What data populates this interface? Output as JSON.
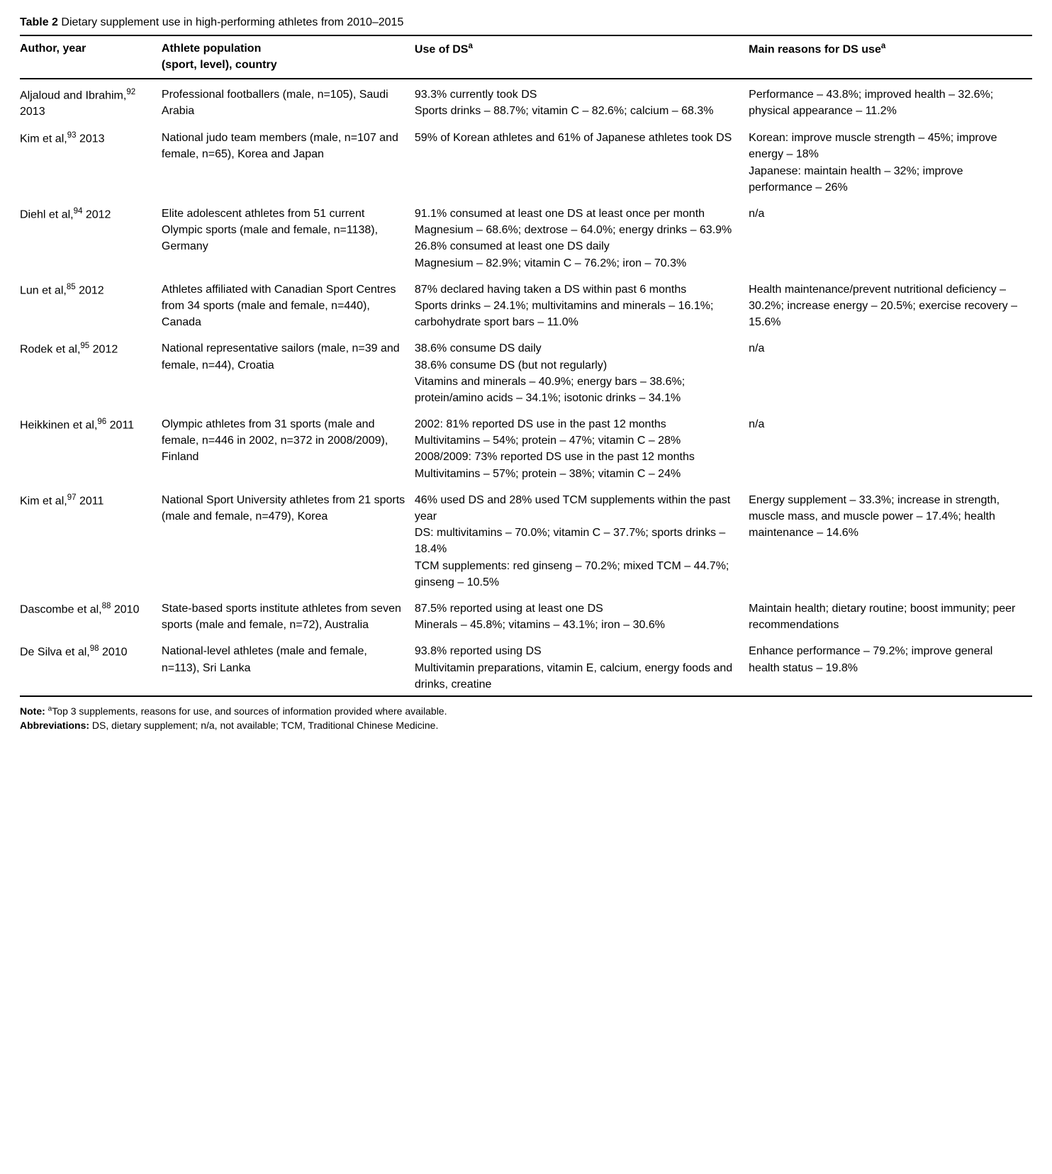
{
  "title_lead": "Table 2",
  "title_rest": " Dietary supplement use in high-performing athletes from 2010–2015",
  "columns": {
    "c1": "Author, year",
    "c2_line1": "Athlete population",
    "c2_line2": "(sport, level), country",
    "c3_pre": "Use of DS",
    "c3_sup": "a",
    "c4_pre": "Main reasons for DS use",
    "c4_sup": "a"
  },
  "rows": [
    {
      "author_pre": "Aljaloud and Ibrahim,",
      "author_sup": "92",
      "author_post": " 2013",
      "population": "Professional footballers (male, n=105), Saudi Arabia",
      "use": "93.3% currently took DS\nSports drinks – 88.7%; vitamin C – 82.6%; calcium – 68.3%",
      "reasons": "Performance – 43.8%; improved health – 32.6%; physical appearance – 11.2%"
    },
    {
      "author_pre": "Kim et al,",
      "author_sup": "93",
      "author_post": " 2013",
      "population": "National judo team members (male, n=107 and female, n=65), Korea and Japan",
      "use": "59% of Korean athletes and 61% of Japanese athletes took DS",
      "reasons": "Korean: improve muscle strength – 45%; improve energy – 18%\nJapanese: maintain health – 32%; improve performance – 26%"
    },
    {
      "author_pre": "Diehl et al,",
      "author_sup": "94",
      "author_post": " 2012",
      "population": "Elite adolescent athletes from 51 current Olympic sports (male and female, n=1138), Germany",
      "use": "91.1% consumed at least one DS at least once per month\nMagnesium – 68.6%; dextrose – 64.0%; energy drinks – 63.9%\n26.8% consumed at least one DS daily\nMagnesium – 82.9%; vitamin C – 76.2%; iron – 70.3%",
      "reasons": "n/a"
    },
    {
      "author_pre": "Lun et al,",
      "author_sup": "85",
      "author_post": " 2012",
      "population": "Athletes affiliated with Canadian Sport Centres from 34 sports (male and female, n=440), Canada",
      "use": "87% declared having taken a DS within past 6 months\nSports drinks – 24.1%; multivitamins and minerals – 16.1%; carbohydrate sport bars – 11.0%",
      "reasons": "Health maintenance/prevent nutritional deficiency – 30.2%; increase energy – 20.5%; exercise recovery – 15.6%"
    },
    {
      "author_pre": "Rodek et al,",
      "author_sup": "95",
      "author_post": " 2012",
      "population": "National representative sailors (male, n=39 and female, n=44), Croatia",
      "use": "38.6% consume DS daily\n38.6% consume DS (but not regularly)\nVitamins and minerals – 40.9%; energy bars – 38.6%; protein/amino acids – 34.1%; isotonic drinks – 34.1%",
      "reasons": "n/a"
    },
    {
      "author_pre": "Heikkinen et al,",
      "author_sup": "96",
      "author_post": " 2011",
      "population": "Olympic athletes from 31 sports (male and female, n=446 in 2002, n=372 in 2008/2009), Finland",
      "use": "2002: 81% reported DS use in the past 12 months\nMultivitamins – 54%; protein – 47%; vitamin C – 28%\n2008/2009: 73% reported DS use in the past 12 months\nMultivitamins – 57%; protein – 38%; vitamin C – 24%",
      "reasons": "n/a"
    },
    {
      "author_pre": "Kim et al,",
      "author_sup": "97",
      "author_post": " 2011",
      "population": "National Sport University athletes from 21 sports (male and female, n=479), Korea",
      "use": "46% used DS and 28% used TCM supplements within the past year\nDS: multivitamins – 70.0%; vitamin C – 37.7%; sports drinks – 18.4%\nTCM supplements: red ginseng – 70.2%; mixed TCM – 44.7%; ginseng – 10.5%",
      "reasons": "Energy supplement – 33.3%; increase in strength, muscle mass, and muscle power – 17.4%; health maintenance – 14.6%"
    },
    {
      "author_pre": "Dascombe et al,",
      "author_sup": "88",
      "author_post": " 2010",
      "population": "State-based sports institute athletes from seven sports (male and female, n=72), Australia",
      "use": "87.5% reported using at least one DS\nMinerals – 45.8%; vitamins – 43.1%; iron – 30.6%",
      "reasons": "Maintain health; dietary routine; boost immunity; peer recommendations"
    },
    {
      "author_pre": "De Silva et al,",
      "author_sup": "98",
      "author_post": " 2010",
      "population": "National-level athletes (male and female, n=113), Sri Lanka",
      "use": "93.8% reported using DS\nMultivitamin preparations, vitamin E, calcium, energy foods and drinks, creatine",
      "reasons": "Enhance performance – 79.2%; improve general health status – 19.8%"
    }
  ],
  "note_label": "Note:",
  "note_sup": "a",
  "note_text": "Top 3 supplements, reasons for use, and sources of information provided where available.",
  "abbrev_label": "Abbreviations:",
  "abbrev_text": " DS, dietary supplement; n/a, not available; TCM, Traditional Chinese Medicine."
}
